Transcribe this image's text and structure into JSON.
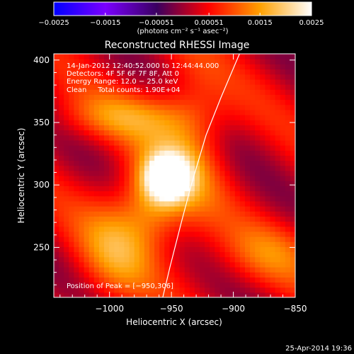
{
  "chart_data": {
    "type": "heatmap",
    "title": "Reconstructed RHESSI Image",
    "xlabel": "Heliocentric X (arcsec)",
    "ylabel": "Heliocentric Y (arcsec)",
    "xlim": [
      -1045,
      -850
    ],
    "ylim": [
      210,
      405
    ],
    "xticks": [
      -1000,
      -950,
      -900,
      -850
    ],
    "xtick_labels": [
      "−1000",
      "−950",
      "−900",
      "−850"
    ],
    "yticks": [
      250,
      300,
      350,
      400
    ],
    "ytick_labels": [
      "250",
      "300",
      "350",
      "400"
    ],
    "colorbar": {
      "range": [
        -0.0025,
        0.0025
      ],
      "ticks": [
        -0.0025,
        -0.0015,
        -0.00051,
        0.00051,
        0.0015,
        0.0025
      ],
      "tick_labels": [
        "−0.0025",
        "−0.0015",
        "−0.00051",
        "0.00051",
        "0.0015",
        "0.0025"
      ],
      "unit_label": "(photons cm⁻² s⁻¹ asec⁻²)",
      "colormap": [
        "#0000ff",
        "#7a00ff",
        "#3a0060",
        "#ff0000",
        "#ffa000",
        "#ffffff"
      ]
    },
    "annotations": [
      "14-Jan-2012 12:40:52.000 to 12:44:44.000",
      "Detectors: 4F 5F 6F 7F 8F, Att 0",
      "Energy Range: 12.0 − 25.0 keV",
      "Clean     Total counts: 1.90E+04"
    ],
    "peak_label": "Position of Peak = [−950,306]",
    "peak": [
      -950,
      306
    ],
    "limb_curve": [
      [
        -895,
        405
      ],
      [
        -910,
        370
      ],
      [
        -922,
        340
      ],
      [
        -934,
        300
      ],
      [
        -942,
        270
      ],
      [
        -951,
        235
      ],
      [
        -957,
        210
      ]
    ],
    "sources": [
      {
        "x": -953,
        "y": 306,
        "sx": 12,
        "sy": 12,
        "amp": 0.0024
      },
      {
        "x": -965,
        "y": 290,
        "sx": 18,
        "sy": 26,
        "amp": 0.0012
      },
      {
        "x": -985,
        "y": 355,
        "sx": 40,
        "sy": 14,
        "amp": 0.0009
      },
      {
        "x": -995,
        "y": 250,
        "sx": 22,
        "sy": 30,
        "amp": 0.001
      },
      {
        "x": -935,
        "y": 330,
        "sx": 20,
        "sy": 45,
        "amp": 0.0009
      },
      {
        "x": -870,
        "y": 245,
        "sx": 30,
        "sy": 18,
        "amp": 0.0007
      }
    ],
    "background": 0.0003
  },
  "footer": {
    "timestamp": "25-Apr-2014 19:36"
  }
}
